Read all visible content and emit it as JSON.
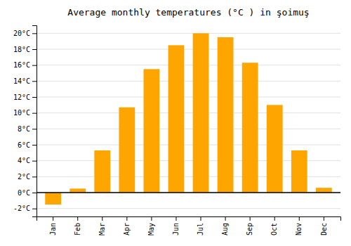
{
  "chart_data": {
    "type": "bar",
    "title": "Average monthly temperatures (°C ) in şoimuş",
    "categories": [
      "Jan",
      "Feb",
      "Mar",
      "Apr",
      "May",
      "Jun",
      "Jul",
      "Aug",
      "Sep",
      "Oct",
      "Nov",
      "Dec"
    ],
    "values": [
      -1.5,
      0.5,
      5.3,
      10.7,
      15.5,
      18.5,
      20.0,
      19.5,
      16.3,
      11.0,
      5.3,
      0.6
    ],
    "color": "#FFA500",
    "ylim": [
      -3,
      21
    ],
    "yticks": [
      {
        "value": -2,
        "label": "-2°C"
      },
      {
        "value": 0,
        "label": "0°C"
      },
      {
        "value": 2,
        "label": "2°C"
      },
      {
        "value": 4,
        "label": "4°C"
      },
      {
        "value": 6,
        "label": "6°C"
      },
      {
        "value": 8,
        "label": "8°C"
      },
      {
        "value": 10,
        "label": "10°C"
      },
      {
        "value": 12,
        "label": "12°C"
      },
      {
        "value": 14,
        "label": "14°C"
      },
      {
        "value": 16,
        "label": "16°C"
      },
      {
        "value": 18,
        "label": "18°C"
      },
      {
        "value": 20,
        "label": "20°C"
      }
    ],
    "grid": true
  }
}
